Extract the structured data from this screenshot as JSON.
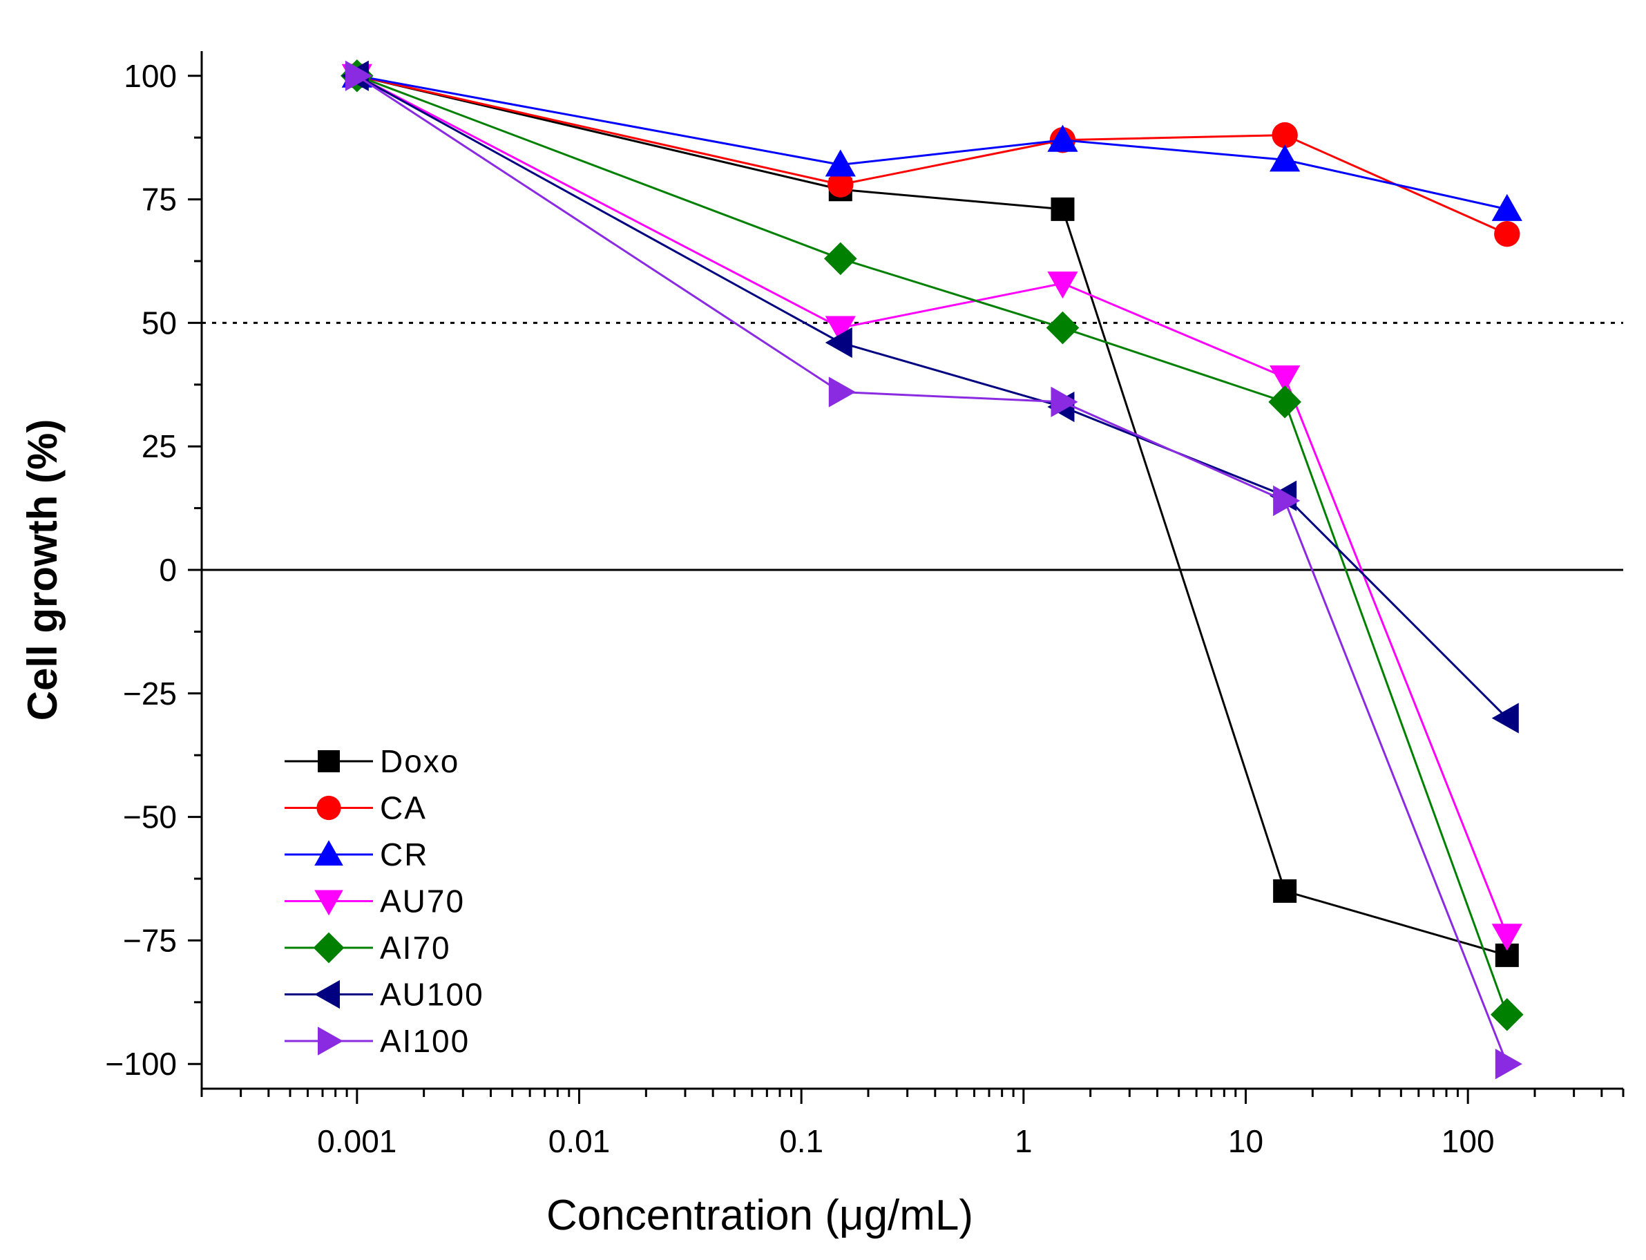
{
  "chart_data": {
    "type": "line",
    "xscale": "log",
    "xlabel": "Concentration (μg/mL)",
    "ylabel": "Cell growth (%)",
    "xlim": [
      0.0002,
      500
    ],
    "ylim": [
      -105,
      105
    ],
    "x_ticks": [
      {
        "value": 0.001,
        "label": "0.001"
      },
      {
        "value": 0.01,
        "label": "0.01"
      },
      {
        "value": 0.1,
        "label": "0.1"
      },
      {
        "value": 1,
        "label": "1"
      },
      {
        "value": 10,
        "label": "10"
      },
      {
        "value": 100,
        "label": "100"
      }
    ],
    "y_ticks": [
      {
        "value": 100,
        "label": "100"
      },
      {
        "value": 75,
        "label": "75"
      },
      {
        "value": 50,
        "label": "50"
      },
      {
        "value": 25,
        "label": "25"
      },
      {
        "value": 0,
        "label": "0"
      },
      {
        "value": -25,
        "label": "−25"
      },
      {
        "value": -50,
        "label": "−50"
      },
      {
        "value": -75,
        "label": "−75"
      },
      {
        "value": -100,
        "label": "−100"
      }
    ],
    "reference_lines": [
      {
        "y": 50,
        "style": "dotted"
      },
      {
        "y": 0,
        "style": "solid"
      }
    ],
    "legend_position": "bottom-left",
    "x": [
      0.001,
      0.15,
      1.5,
      15,
      150
    ],
    "series": [
      {
        "name": "Doxo",
        "color": "#000000",
        "marker": "square",
        "values": [
          100,
          77,
          73,
          -65,
          -78
        ]
      },
      {
        "name": "CA",
        "color": "#ff0000",
        "marker": "circle",
        "values": [
          100,
          78,
          87,
          88,
          68
        ]
      },
      {
        "name": "CR",
        "color": "#0000ff",
        "marker": "triangle-up",
        "values": [
          100,
          82,
          87,
          83,
          73
        ]
      },
      {
        "name": "AU70",
        "color": "#ff00ff",
        "marker": "triangle-down",
        "values": [
          100,
          49,
          58,
          39,
          -74
        ]
      },
      {
        "name": "AI70",
        "color": "#008000",
        "marker": "diamond",
        "values": [
          100,
          63,
          49,
          34,
          -90
        ]
      },
      {
        "name": "AU100",
        "color": "#000080",
        "marker": "triangle-left",
        "values": [
          100,
          46,
          33,
          15,
          -30
        ]
      },
      {
        "name": "AI100",
        "color": "#8a2be2",
        "marker": "triangle-right",
        "values": [
          100,
          36,
          34,
          14,
          -100
        ]
      }
    ]
  }
}
